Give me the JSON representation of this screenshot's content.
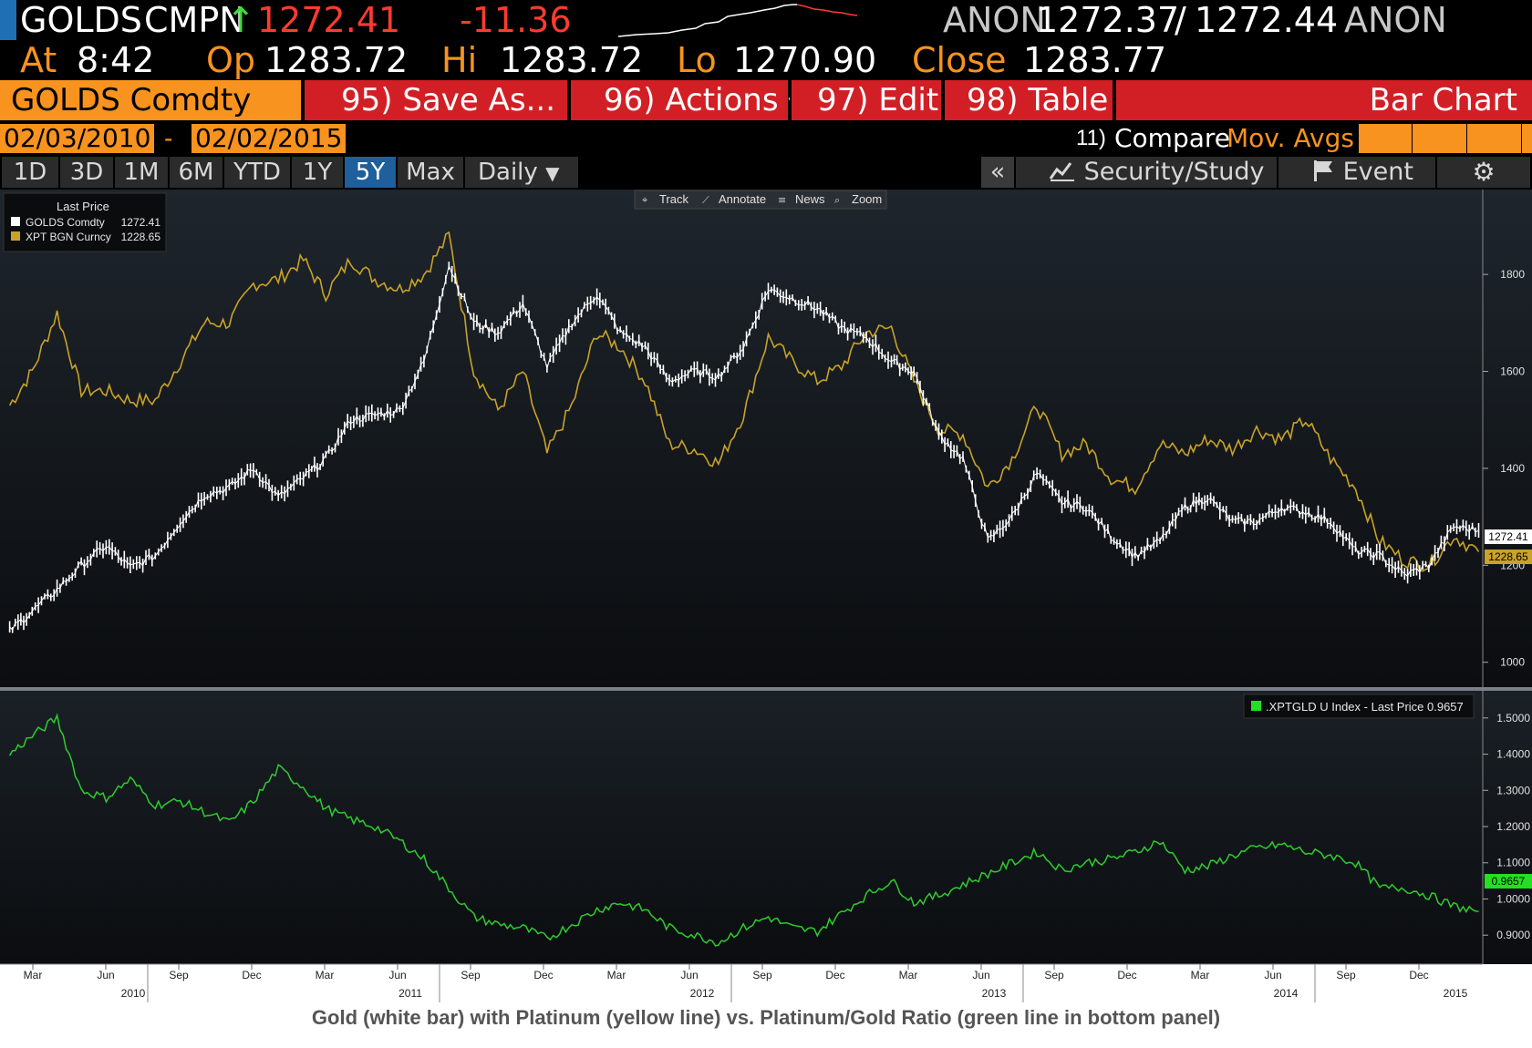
{
  "quote": {
    "ticker": "GOLDS",
    "exchange": "CMPN",
    "arrow": "↑",
    "last": "1272.41",
    "change": "-11.36",
    "src_left": "ANON",
    "bid": "1272.37",
    "slash": "/",
    "ask": "1272.44",
    "src_right": "ANON",
    "at_label": "At",
    "time": "8:42",
    "op_label": "Op",
    "open": "1283.72",
    "hi_label": "Hi",
    "high": "1283.72",
    "lo_label": "Lo",
    "low": "1270.90",
    "close_label": "Close",
    "close": "1283.77"
  },
  "menu": {
    "security": "GOLDS Comdty",
    "save_as": "95) Save As...",
    "actions": "96) Actions",
    "edit": "97) Edit",
    "table": "98) Table",
    "chart_type": "Bar Chart"
  },
  "dates": {
    "start": "02/03/2010",
    "dash": "-",
    "end": "02/02/2015",
    "compare_num": "11)",
    "compare": "Compare",
    "mov_avgs": "Mov. Avgs"
  },
  "tabs": [
    "1D",
    "3D",
    "1M",
    "6M",
    "YTD",
    "1Y",
    "5Y",
    "Max"
  ],
  "active_tab": "5Y",
  "frequency": "Daily",
  "tools": {
    "collapse": "«",
    "security_study": "Security/Study",
    "event": "Event"
  },
  "chart_toolbar": {
    "track": "Track",
    "annotate": "Annotate",
    "news": "News",
    "zoom": "Zoom"
  },
  "legend": {
    "title": "Last Price",
    "gold_name": "GOLDS Comdty",
    "gold_value": "1272.41",
    "plat_name": "XPT BGN Curncy",
    "plat_value": "1228.65"
  },
  "ratio_legend": ".XPTGLD U Index - Last Price 0.9657",
  "price_tags": {
    "gold": "1272.41",
    "plat": "1228.65",
    "ratio": "0.9657"
  },
  "caption": "Gold (white bar) with Platinum (yellow line) vs. Platinum/Gold Ratio (green line in bottom panel)",
  "colors": {
    "orange": "#f7931e",
    "red_button": "#d21f26",
    "gold": "#ffffff",
    "platinum": "#c9a227",
    "ratio": "#2ecc2e",
    "panel_bg": "#141a20"
  },
  "chart_data": {
    "type": "line",
    "x_range": [
      "2010-02-03",
      "2015-02-02"
    ],
    "x_tick_labels": [
      "Mar",
      "Jun",
      "Sep",
      "Dec",
      "Mar",
      "Jun",
      "Sep",
      "Dec",
      "Mar",
      "Jun",
      "Sep",
      "Dec",
      "Mar",
      "Jun",
      "Sep",
      "Dec",
      "Mar",
      "Jun",
      "Sep",
      "Dec"
    ],
    "x_year_labels": [
      "2010",
      "2011",
      "2012",
      "2013",
      "2014",
      "2015"
    ],
    "top_panel": {
      "y_ticks": [
        1000,
        1200,
        1400,
        1600,
        1800
      ],
      "ylim": [
        960,
        1960
      ],
      "x": [
        "2010-02",
        "2010-03",
        "2010-04",
        "2010-05",
        "2010-06",
        "2010-07",
        "2010-08",
        "2010-09",
        "2010-10",
        "2010-11",
        "2010-12",
        "2011-01",
        "2011-02",
        "2011-03",
        "2011-04",
        "2011-05",
        "2011-06",
        "2011-07",
        "2011-08",
        "2011-09",
        "2011-10",
        "2011-11",
        "2011-12",
        "2012-01",
        "2012-02",
        "2012-03",
        "2012-04",
        "2012-05",
        "2012-06",
        "2012-07",
        "2012-08",
        "2012-09",
        "2012-10",
        "2012-11",
        "2012-12",
        "2013-01",
        "2013-02",
        "2013-03",
        "2013-04",
        "2013-05",
        "2013-06",
        "2013-07",
        "2013-08",
        "2013-09",
        "2013-10",
        "2013-11",
        "2013-12",
        "2014-01",
        "2014-02",
        "2014-03",
        "2014-04",
        "2014-05",
        "2014-06",
        "2014-07",
        "2014-08",
        "2014-09",
        "2014-10",
        "2014-11",
        "2014-12",
        "2015-01",
        "2015-02"
      ],
      "series": [
        {
          "name": "GOLDS Comdty",
          "values": [
            1065,
            1105,
            1150,
            1200,
            1240,
            1195,
            1220,
            1290,
            1345,
            1360,
            1400,
            1340,
            1380,
            1420,
            1500,
            1510,
            1520,
            1620,
            1820,
            1700,
            1680,
            1740,
            1610,
            1700,
            1760,
            1680,
            1650,
            1580,
            1600,
            1590,
            1650,
            1770,
            1750,
            1730,
            1690,
            1670,
            1620,
            1600,
            1470,
            1420,
            1250,
            1300,
            1390,
            1330,
            1320,
            1260,
            1220,
            1250,
            1320,
            1340,
            1290,
            1290,
            1320,
            1310,
            1290,
            1230,
            1220,
            1180,
            1200,
            1280,
            1272
          ]
        },
        {
          "name": "XPT BGN Curncy",
          "values": [
            1530,
            1600,
            1720,
            1560,
            1560,
            1540,
            1540,
            1620,
            1700,
            1700,
            1780,
            1790,
            1830,
            1760,
            1830,
            1790,
            1770,
            1800,
            1880,
            1600,
            1520,
            1600,
            1430,
            1530,
            1680,
            1650,
            1580,
            1450,
            1440,
            1410,
            1510,
            1670,
            1620,
            1580,
            1610,
            1680,
            1690,
            1580,
            1480,
            1470,
            1360,
            1420,
            1530,
            1430,
            1450,
            1380,
            1360,
            1450,
            1430,
            1460,
            1440,
            1480,
            1460,
            1500,
            1420,
            1360,
            1250,
            1210,
            1200,
            1260,
            1228
          ]
        }
      ]
    },
    "bottom_panel": {
      "y_ticks": [
        0.9,
        1.0,
        1.1,
        1.2,
        1.3,
        1.4,
        1.5
      ],
      "ylim": [
        0.83,
        1.56
      ],
      "series": [
        {
          "name": ".XPTGLD U Index",
          "x": [
            "2010-02",
            "2010-03",
            "2010-04",
            "2010-05",
            "2010-06",
            "2010-07",
            "2010-08",
            "2010-09",
            "2010-10",
            "2010-11",
            "2010-12",
            "2011-01",
            "2011-02",
            "2011-03",
            "2011-04",
            "2011-05",
            "2011-06",
            "2011-07",
            "2011-08",
            "2011-09",
            "2011-10",
            "2011-11",
            "2011-12",
            "2012-01",
            "2012-02",
            "2012-03",
            "2012-04",
            "2012-05",
            "2012-06",
            "2012-07",
            "2012-08",
            "2012-09",
            "2012-10",
            "2012-11",
            "2012-12",
            "2013-01",
            "2013-02",
            "2013-03",
            "2013-04",
            "2013-05",
            "2013-06",
            "2013-07",
            "2013-08",
            "2013-09",
            "2013-10",
            "2013-11",
            "2013-12",
            "2014-01",
            "2014-02",
            "2014-03",
            "2014-04",
            "2014-05",
            "2014-06",
            "2014-07",
            "2014-08",
            "2014-09",
            "2014-10",
            "2014-11",
            "2014-12",
            "2015-01",
            "2015-02"
          ],
          "values": [
            1.4,
            1.45,
            1.5,
            1.3,
            1.28,
            1.33,
            1.26,
            1.27,
            1.24,
            1.21,
            1.27,
            1.36,
            1.31,
            1.25,
            1.22,
            1.2,
            1.16,
            1.11,
            1.03,
            0.95,
            0.93,
            0.92,
            0.89,
            0.93,
            0.97,
            0.99,
            0.97,
            0.92,
            0.9,
            0.88,
            0.92,
            0.95,
            0.92,
            0.91,
            0.96,
            1.01,
            1.05,
            0.99,
            1.01,
            1.04,
            1.07,
            1.1,
            1.13,
            1.08,
            1.1,
            1.11,
            1.13,
            1.16,
            1.08,
            1.09,
            1.12,
            1.14,
            1.15,
            1.13,
            1.12,
            1.1,
            1.03,
            1.03,
            1.01,
            0.98,
            0.966
          ]
        }
      ]
    }
  }
}
